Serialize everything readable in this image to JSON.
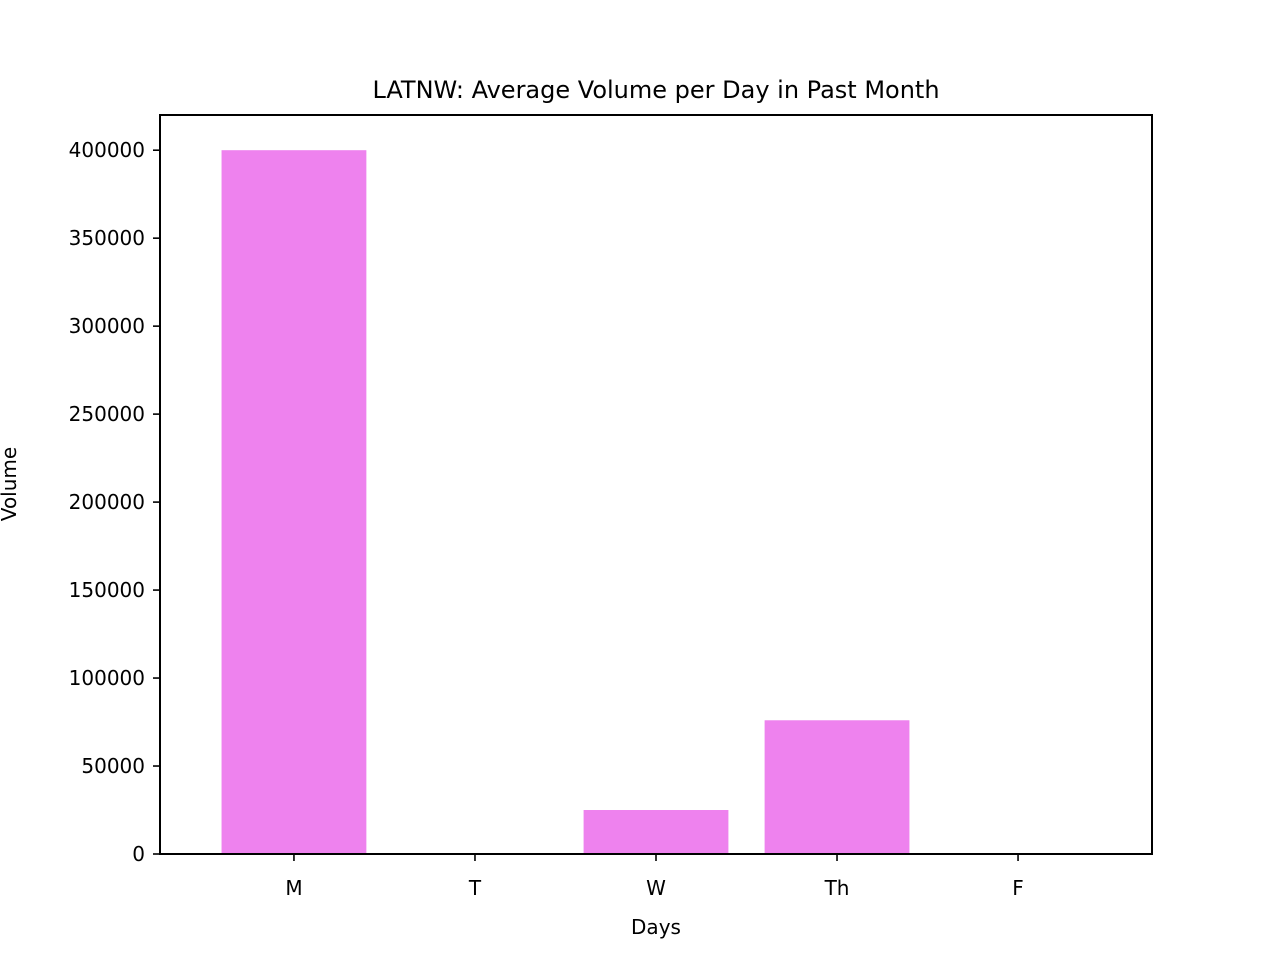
{
  "chart_data": {
    "type": "bar",
    "title": "LATNW: Average Volume per Day in Past Month",
    "xlabel": "Days",
    "ylabel": "Volume",
    "categories": [
      "M",
      "T",
      "W",
      "Th",
      "F"
    ],
    "values": [
      400000,
      0,
      25000,
      76000,
      0
    ],
    "ylim": [
      0,
      420000
    ],
    "yticks": [
      0,
      50000,
      100000,
      150000,
      200000,
      250000,
      300000,
      350000,
      400000
    ],
    "grid": false,
    "bar_color": "#ee82ee"
  }
}
